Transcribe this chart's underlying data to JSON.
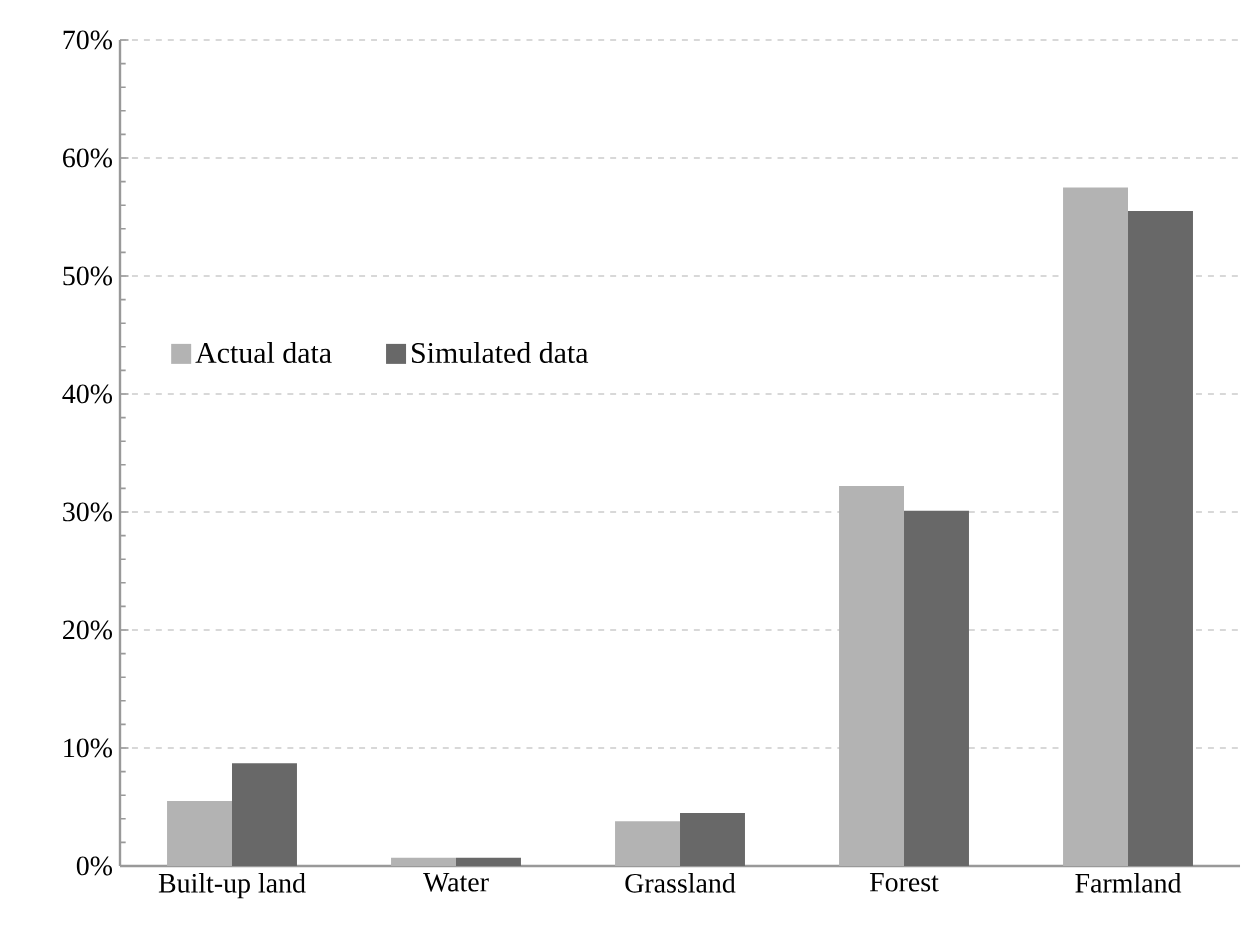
{
  "chart_data": {
    "type": "bar",
    "categories": [
      "Built-up land",
      "Water",
      "Grassland",
      "Forest",
      "Farmland"
    ],
    "series": [
      {
        "name": "Actual data",
        "color": "#b3b3b3",
        "values": [
          5.5,
          0.7,
          3.8,
          32.2,
          57.5
        ]
      },
      {
        "name": "Simulated data",
        "color": "#686868",
        "values": [
          8.7,
          0.7,
          4.5,
          30.1,
          55.5
        ]
      }
    ],
    "ylim": [
      0,
      70
    ],
    "yticks": [
      {
        "value": 0,
        "label": "0%"
      },
      {
        "value": 10,
        "label": "10%"
      },
      {
        "value": 20,
        "label": "20%"
      },
      {
        "value": 30,
        "label": "30%"
      },
      {
        "value": 40,
        "label": "40%"
      },
      {
        "value": 50,
        "label": "50%"
      },
      {
        "value": 60,
        "label": "60%"
      },
      {
        "value": 70,
        "label": "70%"
      }
    ],
    "grid": "y",
    "legend": "left"
  }
}
